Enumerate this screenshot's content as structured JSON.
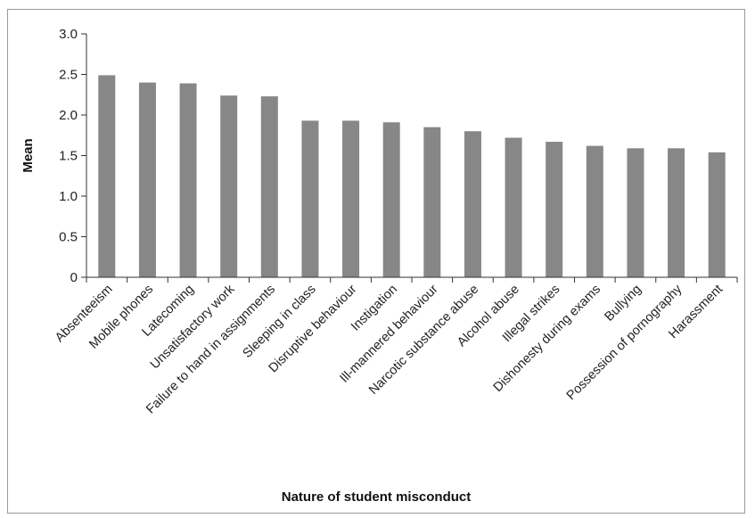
{
  "chart_data": {
    "type": "bar",
    "title": "",
    "xlabel": "Nature of student misconduct",
    "ylabel": "Mean",
    "ylim": [
      0,
      3.0
    ],
    "yticks": [
      {
        "value": 0,
        "label": "0"
      },
      {
        "value": 0.5,
        "label": "0.5"
      },
      {
        "value": 1.0,
        "label": "1.0"
      },
      {
        "value": 1.5,
        "label": "1.5"
      },
      {
        "value": 2.0,
        "label": "2.0"
      },
      {
        "value": 2.5,
        "label": "2.5"
      },
      {
        "value": 3.0,
        "label": "3.0"
      }
    ],
    "grid": false,
    "legend": "none",
    "bar_color": "#878787",
    "categories": [
      "Absenteeism",
      "Mobile phones",
      "Latecoming",
      "Unsatisfactory work",
      "Failure to hand in assignments",
      "Sleeping in class",
      "Disruptive behaviour",
      "Instigation",
      "Ill-mannered behaviour",
      "Narcotic substance abuse",
      "Alcohol abuse",
      "Illegal strikes",
      "Dishonesty during exams",
      "Bullying",
      "Possession of pornography",
      "Harassment"
    ],
    "values": [
      2.49,
      2.4,
      2.39,
      2.24,
      2.23,
      1.93,
      1.93,
      1.91,
      1.85,
      1.8,
      1.72,
      1.67,
      1.62,
      1.59,
      1.59,
      1.54
    ]
  }
}
